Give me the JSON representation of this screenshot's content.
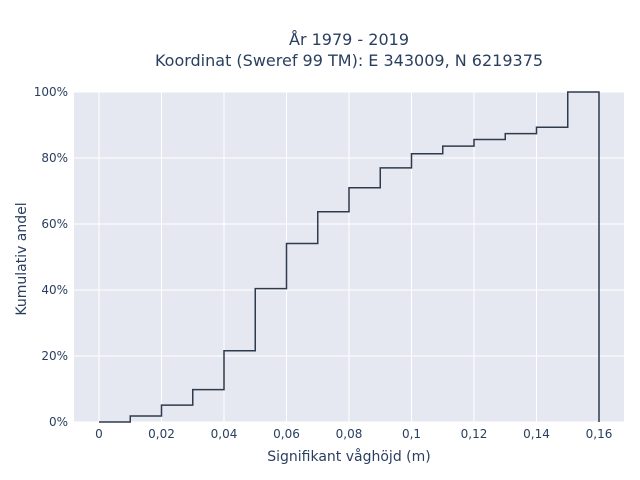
{
  "chart_data": {
    "type": "line",
    "line_shape": "step",
    "title_line1": "År 1979 - 2019",
    "title_line2": "Koordinat (Sweref 99 TM): E 343009, N 6219375",
    "xlabel": "Signifikant våghöjd (m)",
    "ylabel": "Kumulativ andel",
    "x_ticks": [
      0,
      0.02,
      0.04,
      0.06,
      0.08,
      0.1,
      0.12,
      0.14,
      0.16
    ],
    "x_tick_labels": [
      "0",
      "0,02",
      "0,04",
      "0,06",
      "0,08",
      "0,1",
      "0,12",
      "0,14",
      "0,16"
    ],
    "y_ticks": [
      0,
      20,
      40,
      60,
      80,
      100
    ],
    "y_tick_labels": [
      "0%",
      "20%",
      "40%",
      "60%",
      "80%",
      "100%"
    ],
    "xlim": [
      -0.008,
      0.168
    ],
    "ylim": [
      0,
      100
    ],
    "x": [
      0,
      0.01,
      0.02,
      0.03,
      0.04,
      0.05,
      0.06,
      0.07,
      0.08,
      0.09,
      0.1,
      0.11,
      0.12,
      0.13,
      0.14,
      0.15,
      0.16
    ],
    "y": [
      0,
      1.8,
      5.1,
      9.8,
      21.6,
      40.4,
      54.1,
      63.7,
      71.0,
      77.0,
      81.3,
      83.6,
      85.6,
      87.4,
      89.3,
      100,
      0
    ],
    "grid": true,
    "colors": {
      "line": "#2f3b4c",
      "plot_bg": "#e5e8f1",
      "grid": "#ffffff",
      "text": "#2a3f5f"
    }
  }
}
